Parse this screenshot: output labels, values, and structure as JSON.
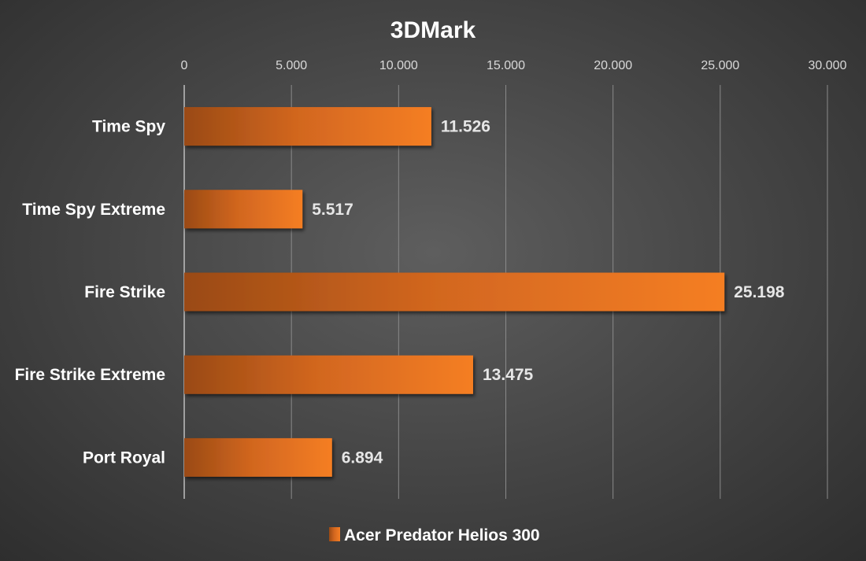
{
  "chart_data": {
    "type": "bar",
    "orientation": "horizontal",
    "title": "3DMark",
    "categories": [
      "Time Spy",
      "Time Spy Extreme",
      "Fire Strike",
      "Fire Strike Extreme",
      "Port Royal"
    ],
    "series": [
      {
        "name": "Acer Predator Helios 300",
        "values": [
          11526,
          5517,
          25198,
          13475,
          6894
        ],
        "value_labels": [
          "11.526",
          "5.517",
          "25.198",
          "13.475",
          "6.894"
        ],
        "color": "#f07b22"
      }
    ],
    "xlim": [
      0,
      30000
    ],
    "xticks": [
      0,
      5000,
      10000,
      15000,
      20000,
      25000,
      30000
    ],
    "xtick_labels": [
      "0",
      "5.000",
      "10.000",
      "15.000",
      "20.000",
      "25.000",
      "30.000"
    ],
    "x_axis_position": "top",
    "grid": true,
    "legend_position": "bottom"
  }
}
